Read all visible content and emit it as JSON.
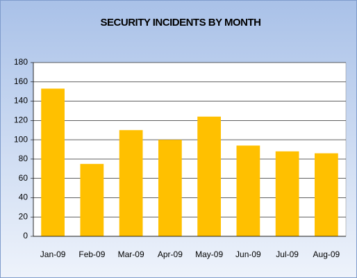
{
  "chart_data": {
    "type": "bar",
    "title": "SECURITY INCIDENTS BY MONTH",
    "categories": [
      "Jan-09",
      "Feb-09",
      "Mar-09",
      "Apr-09",
      "May-09",
      "Jun-09",
      "Jul-09",
      "Aug-09"
    ],
    "values": [
      153,
      75,
      110,
      100,
      124,
      94,
      88,
      86
    ],
    "color": "#ffc000",
    "ylim": [
      0,
      180
    ],
    "yticks": [
      0,
      20,
      40,
      60,
      80,
      100,
      120,
      140,
      160,
      180
    ],
    "grid": true
  }
}
